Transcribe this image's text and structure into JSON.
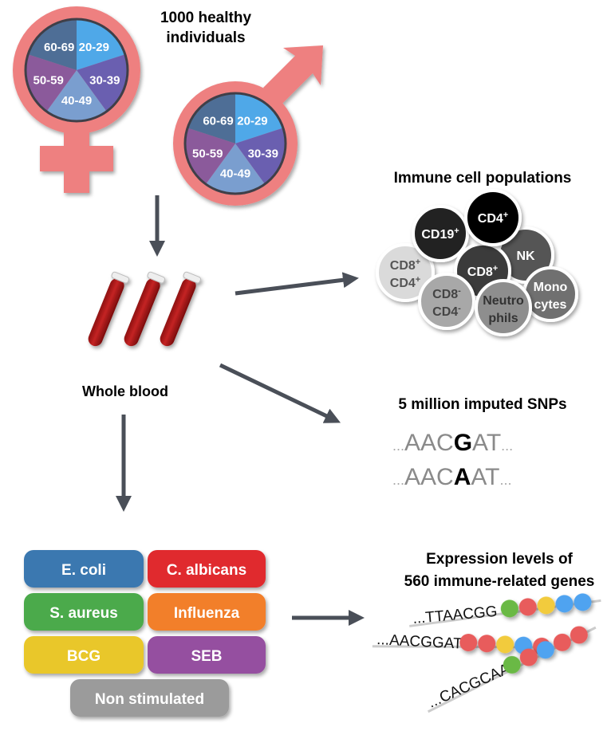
{
  "title": {
    "line1": "1000 healthy",
    "line2": "individuals"
  },
  "age_groups": [
    {
      "label": "20-29",
      "color": "#4FA8E8"
    },
    {
      "label": "30-39",
      "color": "#6A5FB0"
    },
    {
      "label": "40-49",
      "color": "#7A9ECF"
    },
    {
      "label": "50-59",
      "color": "#8B5A9B"
    },
    {
      "label": "60-69",
      "color": "#4E6E96"
    }
  ],
  "symbol_color": "#EE8080",
  "whole_blood": "Whole blood",
  "immune": {
    "title": "Immune cell populations",
    "cells": [
      {
        "line1": "CD8",
        "sup1": "+",
        "line2": "CD4",
        "sup2": "+",
        "fill": "#DADADA",
        "text": "#555"
      },
      {
        "line1": "CD19",
        "sup1": "+",
        "fill": "#222222",
        "text": "#fff"
      },
      {
        "line1": "NK",
        "fill": "#555555",
        "text": "#fff"
      },
      {
        "line1": "CD8",
        "sup1": "+",
        "fill": "#3A3A3A",
        "text": "#fff"
      },
      {
        "line1": "CD4",
        "sup1": "+",
        "fill": "#000000",
        "text": "#fff"
      },
      {
        "line1": "CD8",
        "sup1": "-",
        "line2": "CD4",
        "sup2": "-",
        "fill": "#A8A8A8",
        "text": "#444"
      },
      {
        "line1": "Mono",
        "line2": "cytes",
        "fill": "#707070",
        "text": "#fff"
      },
      {
        "line1": "Neutro",
        "line2": "phils",
        "fill": "#8E8E8E",
        "text": "#333"
      }
    ]
  },
  "snps": {
    "title": "5 million imputed SNPs",
    "seq1": {
      "pre": "AAC",
      "allele": "G",
      "post": "AT"
    },
    "seq2": {
      "pre": "AAC",
      "allele": "A",
      "post": "AT"
    },
    "dots": "..."
  },
  "stimuli": [
    {
      "label": "E. coli",
      "color": "#3A78B0"
    },
    {
      "label": "C. albicans",
      "color": "#E0292E"
    },
    {
      "label": "S. aureus",
      "color": "#4BAA4B"
    },
    {
      "label": "Influenza",
      "color": "#F27F2C"
    },
    {
      "label": "BCG",
      "color": "#E9C72B"
    },
    {
      "label": "SEB",
      "color": "#9550A0"
    },
    {
      "label": "Non stimulated",
      "color": "#9B9B9B"
    }
  ],
  "expression": {
    "title1": "Expression levels of",
    "title2": "560 immune-related genes",
    "rows": [
      {
        "seq": "...TTAACGG",
        "beads": [
          "#6BB944",
          "#E85C5C",
          "#F2CB3C",
          "#4FA3F0",
          "#4FA3F0"
        ]
      },
      {
        "seq": "...AACGGAT",
        "beads": [
          "#E85C5C",
          "#E85C5C",
          "#F2CB3C",
          "#4FA3F0",
          "#E85C5C"
        ]
      },
      {
        "seq": "...CACGCAA",
        "beads": [
          "#6BB944",
          "#E85C5C",
          "#4FA3F0",
          "#E85C5C",
          "#E85C5C"
        ]
      }
    ]
  }
}
